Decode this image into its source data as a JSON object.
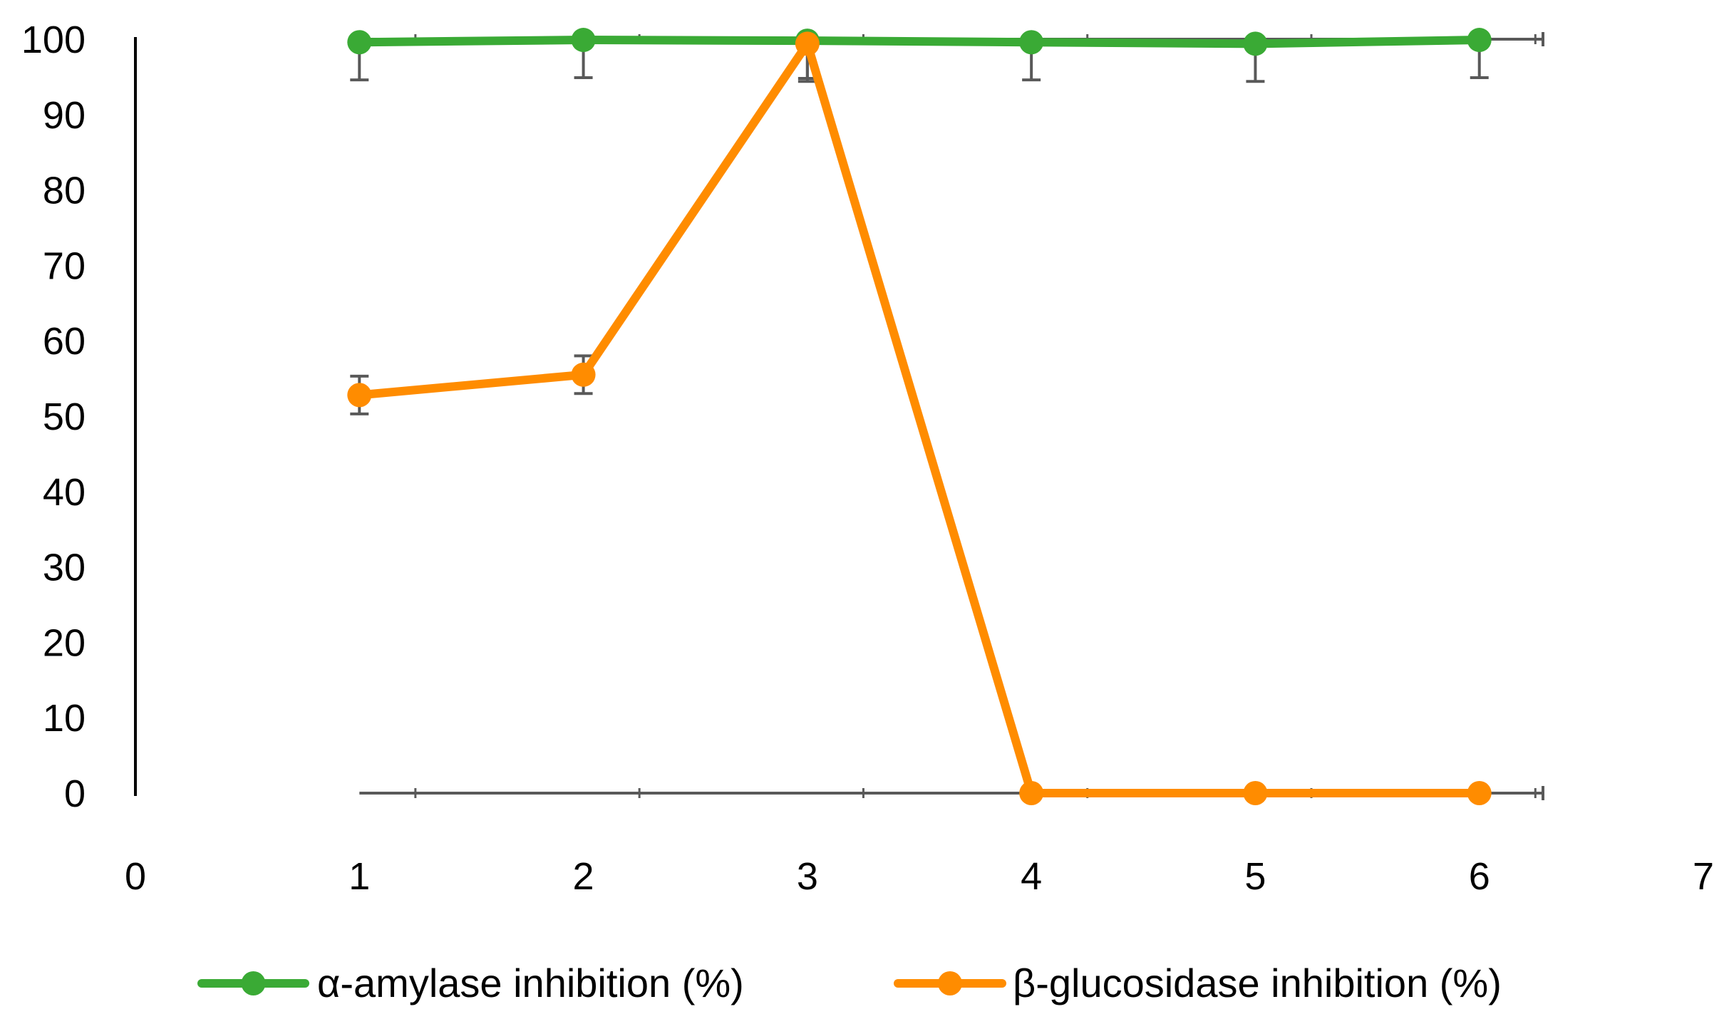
{
  "chart_data": {
    "type": "line",
    "title": "",
    "xlabel": "",
    "ylabel": "",
    "xlim": [
      0,
      7
    ],
    "ylim": [
      0,
      100
    ],
    "x_ticks": [
      0,
      1,
      2,
      3,
      4,
      5,
      6,
      7
    ],
    "y_ticks": [
      0,
      10,
      20,
      30,
      40,
      50,
      60,
      70,
      80,
      90,
      100
    ],
    "grid": false,
    "legend_position": "bottom",
    "series": [
      {
        "name": "α-amylase inhibition (%)",
        "color": "#3aaa35",
        "x": [
          1,
          2,
          3,
          4,
          5,
          6
        ],
        "y": [
          99.6,
          99.9,
          99.8,
          99.6,
          99.4,
          99.9
        ],
        "err_low": [
          5,
          5,
          5,
          5,
          5,
          5
        ],
        "err_high": [
          0,
          0,
          0,
          0,
          0,
          0
        ]
      },
      {
        "name": "β-glucosidase inhibition (%)",
        "color": "#ff8c00",
        "x": [
          1,
          2,
          3,
          4,
          5,
          6
        ],
        "y": [
          52.8,
          55.5,
          99.4,
          0,
          0,
          0
        ],
        "err_low": [
          2.5,
          2.5,
          5,
          0,
          0,
          0
        ],
        "err_high": [
          2.5,
          2.5,
          0,
          0,
          0,
          0
        ]
      }
    ]
  }
}
